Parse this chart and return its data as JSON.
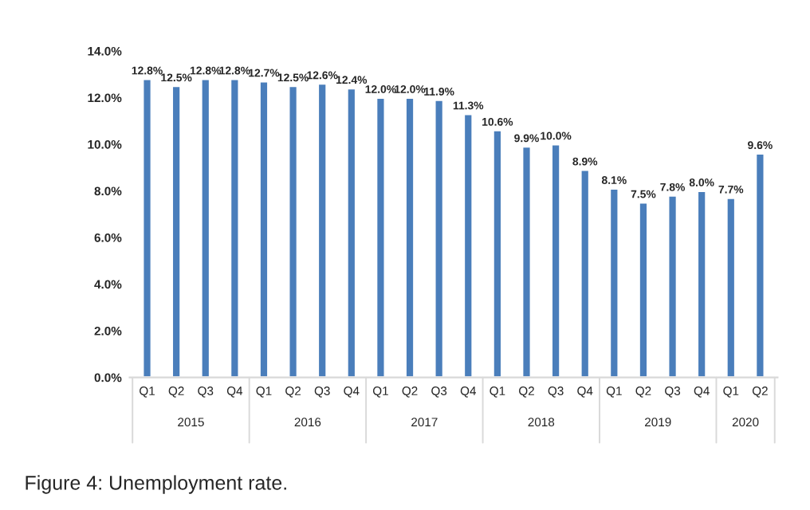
{
  "chart_data": {
    "type": "bar",
    "categories": [
      "Q1",
      "Q2",
      "Q3",
      "Q4",
      "Q1",
      "Q2",
      "Q3",
      "Q4",
      "Q1",
      "Q2",
      "Q3",
      "Q4",
      "Q1",
      "Q2",
      "Q3",
      "Q4",
      "Q1",
      "Q2",
      "Q3",
      "Q4",
      "Q1",
      "Q2"
    ],
    "values": [
      12.8,
      12.5,
      12.8,
      12.8,
      12.7,
      12.5,
      12.6,
      12.4,
      12.0,
      12.0,
      11.9,
      11.3,
      10.6,
      9.9,
      10.0,
      8.9,
      8.1,
      7.5,
      7.8,
      8.0,
      7.7,
      9.6
    ],
    "value_labels": [
      "12.8%",
      "12.5%",
      "12.8%",
      "12.8%",
      "12.7%",
      "12.5%",
      "12.6%",
      "12.4%",
      "12.0%",
      "12.0%",
      "11.9%",
      "11.3%",
      "10.6%",
      "9.9%",
      "10.0%",
      "8.9%",
      "8.1%",
      "7.5%",
      "7.8%",
      "8.0%",
      "7.7%",
      "9.6%"
    ],
    "color": "#4a7ebb",
    "ylim": [
      0,
      14
    ],
    "yticks": [
      {
        "value": 0,
        "label": "0.0%"
      },
      {
        "value": 2,
        "label": "2.0%"
      },
      {
        "value": 4,
        "label": "4.0%"
      },
      {
        "value": 6,
        "label": "6.0%"
      },
      {
        "value": 8,
        "label": "8.0%"
      },
      {
        "value": 10,
        "label": "10.0%"
      },
      {
        "value": 12,
        "label": "12.0%"
      },
      {
        "value": 14,
        "label": "14.0%"
      }
    ],
    "annotations": [
      "2015",
      "2016",
      "2017",
      "2018",
      "2019",
      "2020",
      "Figure 4: Unemployment rate."
    ],
    "grid": false,
    "legend": false
  }
}
